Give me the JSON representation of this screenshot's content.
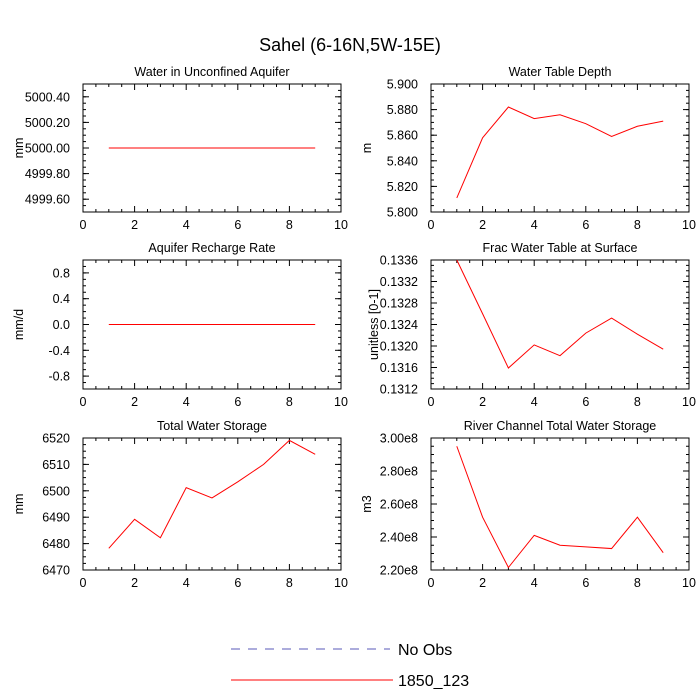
{
  "figure": {
    "title": "Sahel (6-16N,5W-15E)"
  },
  "legend": {
    "entries": [
      {
        "label": "No Obs",
        "color": "#5a5ab8",
        "dash": true
      },
      {
        "label": "1850_123",
        "color": "#ff0000",
        "dash": false
      }
    ]
  },
  "colors": {
    "series": "#ff0000",
    "axis": "#000000"
  },
  "chart_data": [
    {
      "type": "line",
      "title": "Water in Unconfined Aquifer",
      "ylabel": "mm",
      "x": [
        1,
        2,
        3,
        4,
        5,
        6,
        7,
        8,
        9
      ],
      "series": [
        {
          "name": "1850_123",
          "values": [
            5000,
            5000,
            5000,
            5000,
            5000,
            5000,
            5000,
            5000,
            5000
          ]
        }
      ],
      "xlim": [
        0,
        10
      ],
      "ylim": [
        4999.5,
        5000.5
      ],
      "xticks": [
        0,
        2,
        4,
        6,
        8,
        10
      ],
      "xtick_labels": [
        "0",
        "2",
        "4",
        "6",
        "8",
        "10"
      ],
      "yticks": [
        4999.6,
        4999.8,
        5000.0,
        5000.2,
        5000.4
      ],
      "ytick_labels": [
        "4999.60",
        "4999.80",
        "5000.00",
        "5000.20",
        "5000.40"
      ],
      "grid": false
    },
    {
      "type": "line",
      "title": "Water Table Depth",
      "ylabel": "m",
      "x": [
        1,
        2,
        3,
        4,
        5,
        6,
        7,
        8,
        9
      ],
      "series": [
        {
          "name": "1850_123",
          "values": [
            5.811,
            5.858,
            5.882,
            5.873,
            5.876,
            5.869,
            5.859,
            5.867,
            5.871
          ]
        }
      ],
      "xlim": [
        0,
        10
      ],
      "ylim": [
        5.8,
        5.9
      ],
      "xticks": [
        0,
        2,
        4,
        6,
        8,
        10
      ],
      "xtick_labels": [
        "0",
        "2",
        "4",
        "6",
        "8",
        "10"
      ],
      "yticks": [
        5.8,
        5.82,
        5.84,
        5.86,
        5.88,
        5.9
      ],
      "ytick_labels": [
        "5.800",
        "5.820",
        "5.840",
        "5.860",
        "5.880",
        "5.900"
      ],
      "grid": false
    },
    {
      "type": "line",
      "title": "Aquifer Recharge Rate",
      "ylabel": "mm/d",
      "x": [
        1,
        2,
        3,
        4,
        5,
        6,
        7,
        8,
        9
      ],
      "series": [
        {
          "name": "1850_123",
          "values": [
            0,
            0,
            0,
            0,
            0,
            0,
            0,
            0,
            0
          ]
        }
      ],
      "xlim": [
        0,
        10
      ],
      "ylim": [
        -1.0,
        1.0
      ],
      "xticks": [
        0,
        2,
        4,
        6,
        8,
        10
      ],
      "xtick_labels": [
        "0",
        "2",
        "4",
        "6",
        "8",
        "10"
      ],
      "yticks": [
        -0.8,
        -0.4,
        0.0,
        0.4,
        0.8
      ],
      "ytick_labels": [
        "-0.8",
        "-0.4",
        "0.0",
        "0.4",
        "0.8"
      ],
      "grid": false
    },
    {
      "type": "line",
      "title": "Frac Water Table at Surface",
      "ylabel": "unitless [0-1]",
      "x": [
        1,
        2,
        3,
        4,
        5,
        6,
        7,
        8,
        9
      ],
      "series": [
        {
          "name": "1850_123",
          "values": [
            0.1336,
            0.1326,
            0.13159,
            0.13202,
            0.13182,
            0.13224,
            0.13252,
            0.13222,
            0.13194
          ]
        }
      ],
      "xlim": [
        0,
        10
      ],
      "ylim": [
        0.1312,
        0.1336
      ],
      "xticks": [
        0,
        2,
        4,
        6,
        8,
        10
      ],
      "xtick_labels": [
        "0",
        "2",
        "4",
        "6",
        "8",
        "10"
      ],
      "yticks": [
        0.1312,
        0.1316,
        0.132,
        0.1324,
        0.1328,
        0.1332,
        0.1336
      ],
      "ytick_labels": [
        "0.1312",
        "0.1316",
        "0.1320",
        "0.1324",
        "0.1328",
        "0.1332",
        "0.1336"
      ],
      "grid": false
    },
    {
      "type": "line",
      "title": "Total Water Storage",
      "ylabel": "mm",
      "x": [
        1,
        2,
        3,
        4,
        5,
        6,
        7,
        8,
        9
      ],
      "series": [
        {
          "name": "1850_123",
          "values": [
            6478.2,
            6489.2,
            6482.2,
            6501.2,
            6497.3,
            6503.4,
            6510.0,
            6519.1,
            6513.8
          ]
        }
      ],
      "xlim": [
        0,
        10
      ],
      "ylim": [
        6470,
        6520
      ],
      "xticks": [
        0,
        2,
        4,
        6,
        8,
        10
      ],
      "xtick_labels": [
        "0",
        "2",
        "4",
        "6",
        "8",
        "10"
      ],
      "yticks": [
        6470,
        6480,
        6490,
        6500,
        6510,
        6520
      ],
      "ytick_labels": [
        "6470",
        "6480",
        "6490",
        "6500",
        "6510",
        "6520"
      ],
      "grid": false
    },
    {
      "type": "line",
      "title": "River Channel Total Water Storage",
      "ylabel": "m3",
      "x": [
        1,
        2,
        3,
        4,
        5,
        6,
        7,
        8,
        9
      ],
      "series": [
        {
          "name": "1850_123",
          "values": [
            295000000.0,
            252000000.0,
            221500000.0,
            241000000.0,
            235000000.0,
            234000000.0,
            233000000.0,
            252000000.0,
            230500000.0
          ]
        }
      ],
      "xlim": [
        0,
        10
      ],
      "ylim": [
        220000000.0,
        300000000.0
      ],
      "xticks": [
        0,
        2,
        4,
        6,
        8,
        10
      ],
      "xtick_labels": [
        "0",
        "2",
        "4",
        "6",
        "8",
        "10"
      ],
      "yticks": [
        220000000.0,
        240000000.0,
        260000000.0,
        280000000.0,
        300000000.0
      ],
      "ytick_labels": [
        "2.20e8",
        "2.40e8",
        "2.60e8",
        "2.80e8",
        "3.00e8"
      ],
      "grid": false
    }
  ]
}
